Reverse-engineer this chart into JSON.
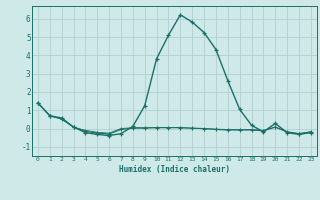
{
  "title": "",
  "xlabel": "Humidex (Indice chaleur)",
  "xlim": [
    -0.5,
    23.5
  ],
  "ylim": [
    -1.5,
    6.7
  ],
  "yticks": [
    -1,
    0,
    1,
    2,
    3,
    4,
    5,
    6
  ],
  "xticks": [
    0,
    1,
    2,
    3,
    4,
    5,
    6,
    7,
    8,
    9,
    10,
    11,
    12,
    13,
    14,
    15,
    16,
    17,
    18,
    19,
    20,
    21,
    22,
    23
  ],
  "background_color": "#cfe8e8",
  "grid_color": "#b0d0d0",
  "line_color": "#1a7068",
  "series": [
    [
      1.4,
      0.7,
      0.58,
      0.08,
      -0.22,
      -0.32,
      -0.38,
      -0.28,
      0.12,
      1.25,
      3.82,
      5.1,
      6.22,
      5.82,
      5.25,
      4.32,
      2.62,
      1.05,
      0.18,
      -0.18,
      0.28,
      -0.22,
      -0.32,
      -0.22
    ],
    [
      1.4,
      0.7,
      0.52,
      0.08,
      -0.15,
      -0.25,
      -0.3,
      -0.05,
      0.02,
      0.02,
      0.05,
      0.05,
      0.05,
      0.02,
      0.0,
      -0.05,
      -0.08,
      -0.08,
      -0.08,
      -0.12,
      0.08,
      -0.18,
      -0.28,
      -0.18
    ],
    [
      1.4,
      0.7,
      0.52,
      0.08,
      -0.1,
      -0.2,
      -0.25,
      0.0,
      0.05,
      0.05,
      0.05,
      0.05,
      0.05,
      0.02,
      0.0,
      -0.03,
      -0.05,
      -0.05,
      -0.05,
      -0.1,
      0.08,
      -0.18,
      -0.28,
      -0.18
    ]
  ],
  "figsize": [
    3.2,
    2.0
  ],
  "dpi": 100
}
